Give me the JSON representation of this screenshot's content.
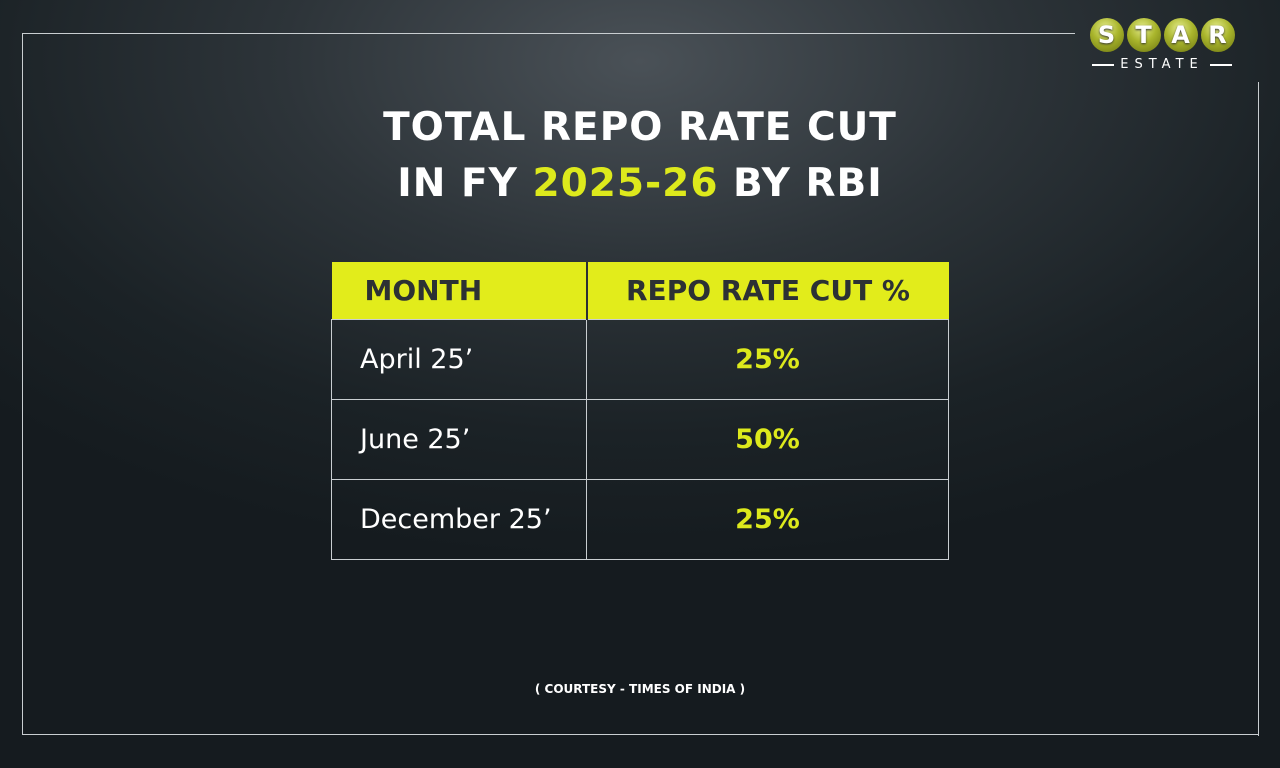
{
  "logo": {
    "letters": [
      "S",
      "T",
      "A",
      "R"
    ],
    "sub": "ESTATE"
  },
  "title": {
    "line1": "TOTAL REPO RATE CUT",
    "line2_pre": "IN FY ",
    "line2_highlight": "2025-26",
    "line2_post": " BY RBI"
  },
  "table": {
    "headers": [
      "MONTH",
      "REPO RATE CUT %"
    ],
    "rows": [
      {
        "month": "April 25’",
        "cut": "25%"
      },
      {
        "month": "June 25’",
        "cut": "50%"
      },
      {
        "month": "December 25’",
        "cut": "25%"
      }
    ]
  },
  "footer": "( COURTESY - TIMES OF INDIA )",
  "colors": {
    "accent": "#dde91c",
    "background": "#1f262a"
  }
}
